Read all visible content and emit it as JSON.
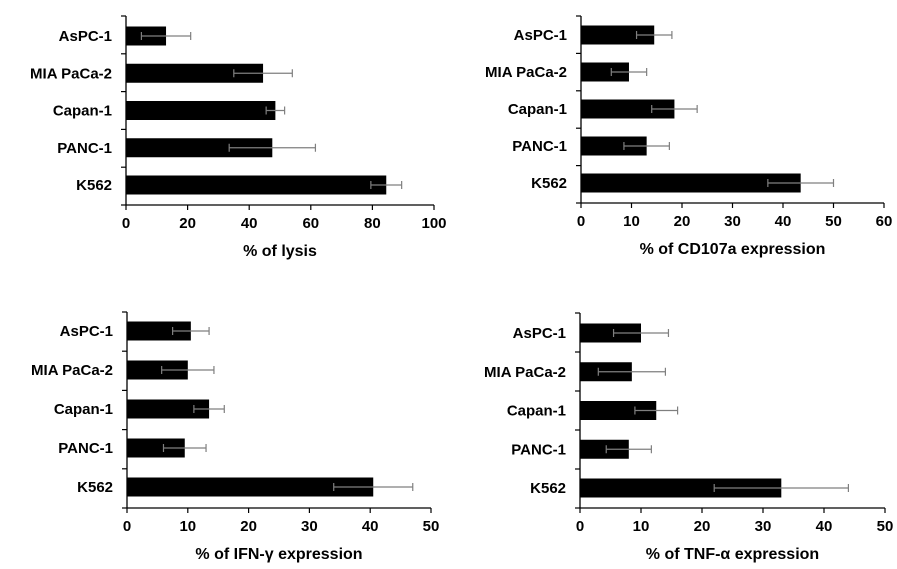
{
  "colors": {
    "bar": "#000000",
    "axis": "#000000",
    "error_bar": "#7f7f7f",
    "background": "#ffffff"
  },
  "chart_data": [
    {
      "type": "bar",
      "orientation": "horizontal",
      "categories": [
        "AsPC-1",
        "MIA PaCa-2",
        "Capan-1",
        "PANC-1",
        "K562"
      ],
      "values": [
        13,
        44.5,
        48.5,
        47.5,
        84.5
      ],
      "errors": [
        8,
        9.5,
        3,
        14,
        5
      ],
      "xlabel": "% of lysis",
      "ylabel": "",
      "xlim": [
        0,
        100
      ],
      "xticks": [
        "0",
        "20",
        "40",
        "60",
        "80",
        "100"
      ],
      "grid": false,
      "legend": "none"
    },
    {
      "type": "bar",
      "orientation": "horizontal",
      "categories": [
        "AsPC-1",
        "MIA PaCa-2",
        "Capan-1",
        "PANC-1",
        "K562"
      ],
      "values": [
        14.5,
        9.5,
        18.5,
        13,
        43.5
      ],
      "errors": [
        3.5,
        3.5,
        4.5,
        4.5,
        6.5
      ],
      "xlabel": "% of CD107a expression",
      "ylabel": "",
      "xlim": [
        0,
        60
      ],
      "xticks": [
        "0",
        "10",
        "20",
        "30",
        "40",
        "50",
        "60"
      ],
      "grid": false,
      "legend": "none"
    },
    {
      "type": "bar",
      "orientation": "horizontal",
      "categories": [
        "AsPC-1",
        "MIA PaCa-2",
        "Capan-1",
        "PANC-1",
        "K562"
      ],
      "values": [
        10.5,
        10,
        13.5,
        9.5,
        40.5
      ],
      "errors": [
        3,
        4.3,
        2.5,
        3.5,
        6.5
      ],
      "xlabel": "% of IFN-γ expression",
      "ylabel": "",
      "xlim": [
        0,
        50
      ],
      "xticks": [
        "0",
        "10",
        "20",
        "30",
        "40",
        "50"
      ],
      "grid": false,
      "legend": "none"
    },
    {
      "type": "bar",
      "orientation": "horizontal",
      "categories": [
        "AsPC-1",
        "MIA PaCa-2",
        "Capan-1",
        "PANC-1",
        "K562"
      ],
      "values": [
        10,
        8.5,
        12.5,
        8,
        33
      ],
      "errors": [
        4.5,
        5.5,
        3.5,
        3.7,
        11
      ],
      "xlabel": "% of TNF-α expression",
      "ylabel": "",
      "xlim": [
        0,
        50
      ],
      "xticks": [
        "0",
        "10",
        "20",
        "30",
        "40",
        "50"
      ],
      "grid": false,
      "legend": "none"
    }
  ]
}
